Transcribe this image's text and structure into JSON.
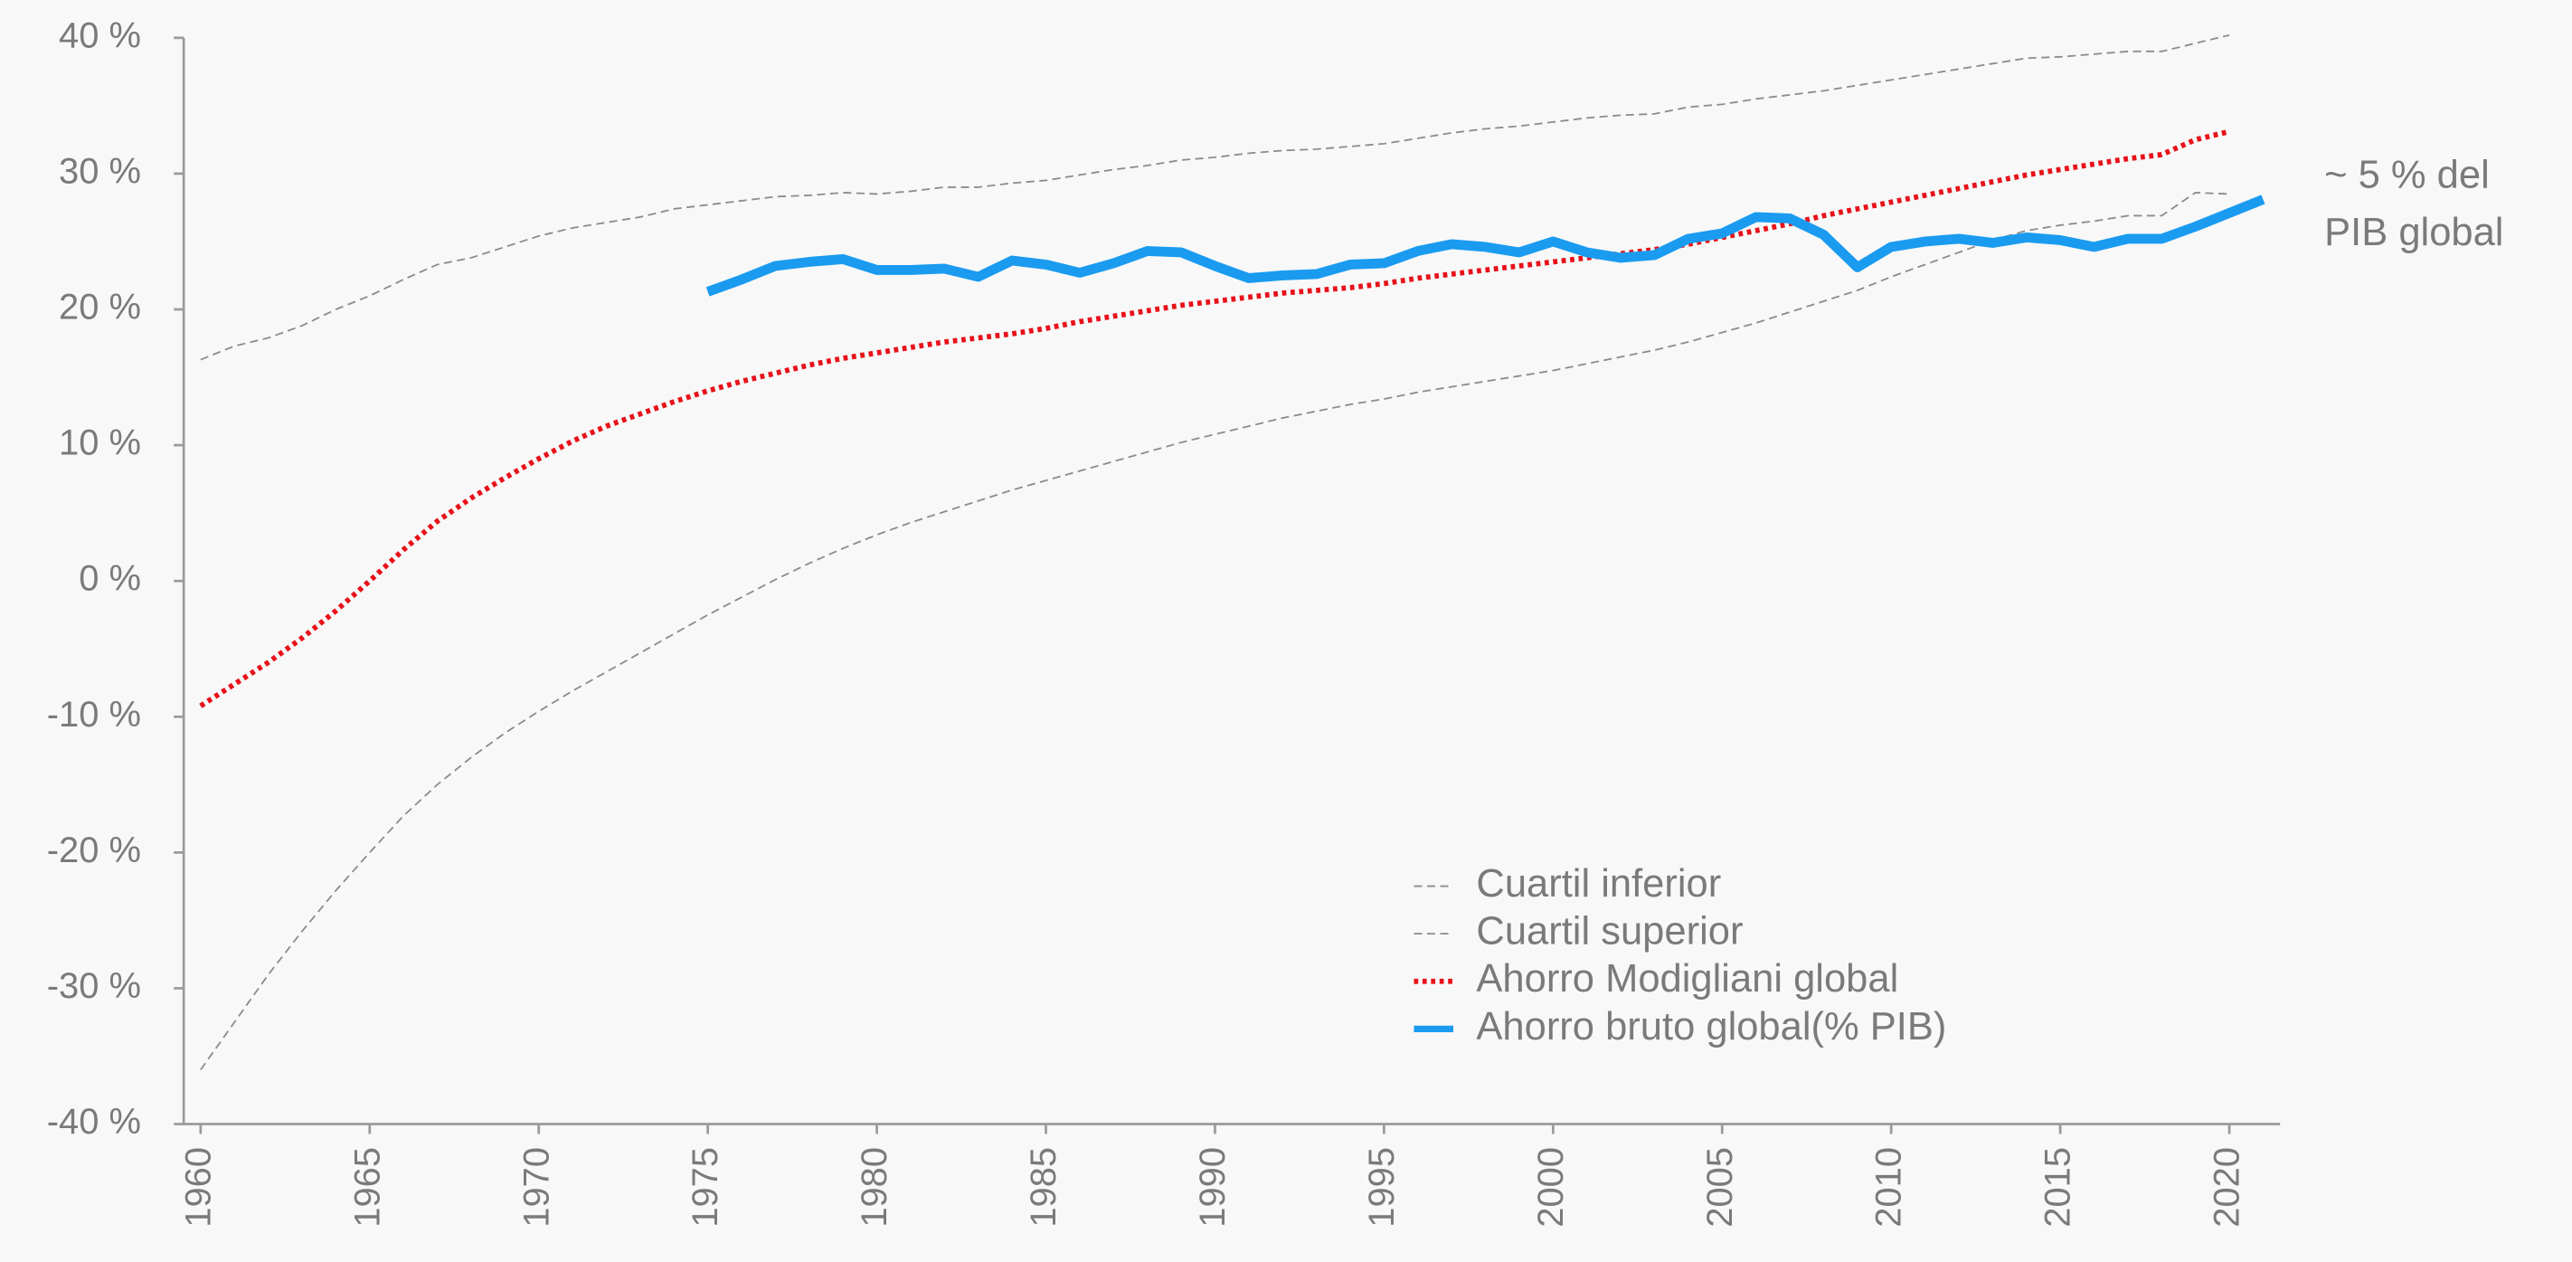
{
  "chart_data": {
    "type": "line",
    "annotation": [
      "~ 5 % del",
      "PIB global"
    ],
    "x": [
      1960,
      1961,
      1962,
      1963,
      1964,
      1965,
      1966,
      1967,
      1968,
      1969,
      1970,
      1971,
      1972,
      1973,
      1974,
      1975,
      1976,
      1977,
      1978,
      1979,
      1980,
      1981,
      1982,
      1983,
      1984,
      1985,
      1986,
      1987,
      1988,
      1989,
      1990,
      1991,
      1992,
      1993,
      1994,
      1995,
      1996,
      1997,
      1998,
      1999,
      2000,
      2001,
      2002,
      2003,
      2004,
      2005,
      2006,
      2007,
      2008,
      2009,
      2010,
      2011,
      2012,
      2013,
      2014,
      2015,
      2016,
      2017,
      2018,
      2019,
      2020,
      2021
    ],
    "xlim": [
      1959.5,
      2021.5
    ],
    "xticks": [
      1960,
      1965,
      1970,
      1975,
      1980,
      1985,
      1990,
      1995,
      2000,
      2005,
      2010,
      2015,
      2020
    ],
    "ylim": [
      -40,
      40
    ],
    "yticks": [
      {
        "value": -40,
        "label": "-40 %"
      },
      {
        "value": -30,
        "label": "-30 %"
      },
      {
        "value": -20,
        "label": "-20 %"
      },
      {
        "value": -10,
        "label": "-10 %"
      },
      {
        "value": 0,
        "label": "0 %"
      },
      {
        "value": 10,
        "label": "10 %"
      },
      {
        "value": 20,
        "label": "20 %"
      },
      {
        "value": 30,
        "label": "30 %"
      },
      {
        "value": 40,
        "label": "40 %"
      }
    ],
    "grid": false,
    "legend": "bottom-center",
    "series": [
      {
        "name": "Cuartil inferior",
        "color": "#8c8c8c",
        "style": "dashed",
        "values": [
          -36,
          -32.5,
          -29,
          -25.8,
          -22.8,
          -20,
          -17.3,
          -15,
          -13,
          -11.2,
          -9.6,
          -8.1,
          -6.7,
          -5.3,
          -3.9,
          -2.5,
          -1.2,
          0.1,
          1.3,
          2.4,
          3.4,
          4.3,
          5.1,
          5.9,
          6.7,
          7.4,
          8.1,
          8.8,
          9.5,
          10.2,
          10.8,
          11.4,
          12.0,
          12.5,
          13.0,
          13.4,
          13.9,
          14.3,
          14.7,
          15.1,
          15.5,
          16.0,
          16.5,
          17.0,
          17.6,
          18.3,
          19.0,
          19.8,
          20.6,
          21.4,
          22.4,
          23.3,
          24.2,
          25.1,
          25.8,
          26.2,
          26.5,
          26.9,
          26.9,
          28.6,
          28.5,
          null
        ]
      },
      {
        "name": "Cuartil superior",
        "color": "#8c8c8c",
        "style": "dashed",
        "values": [
          16.3,
          17.3,
          17.9,
          18.8,
          20.0,
          21.0,
          22.2,
          23.3,
          23.8,
          24.6,
          25.4,
          26.0,
          26.4,
          26.8,
          27.4,
          27.7,
          28.0,
          28.3,
          28.4,
          28.6,
          28.5,
          28.7,
          29.0,
          29.0,
          29.3,
          29.5,
          29.9,
          30.3,
          30.6,
          31.0,
          31.2,
          31.5,
          31.7,
          31.8,
          32.0,
          32.2,
          32.6,
          33.0,
          33.3,
          33.5,
          33.8,
          34.1,
          34.3,
          34.4,
          34.9,
          35.1,
          35.5,
          35.8,
          36.1,
          36.5,
          36.9,
          37.3,
          37.7,
          38.1,
          38.5,
          38.6,
          38.8,
          39.0,
          39.0,
          39.6,
          40.2,
          null
        ]
      },
      {
        "name": "Ahorro Modigliani global",
        "color": "#e8111a",
        "style": "dotted",
        "values": [
          -9.2,
          -7.6,
          -6,
          -4.2,
          -2.2,
          0,
          2.3,
          4.4,
          6.1,
          7.6,
          9.0,
          10.3,
          11.4,
          12.3,
          13.2,
          14.0,
          14.7,
          15.3,
          15.9,
          16.4,
          16.8,
          17.2,
          17.6,
          17.9,
          18.2,
          18.6,
          19.1,
          19.5,
          19.9,
          20.3,
          20.6,
          20.9,
          21.2,
          21.4,
          21.6,
          21.9,
          22.3,
          22.6,
          22.9,
          23.2,
          23.5,
          23.8,
          24.1,
          24.4,
          24.8,
          25.3,
          25.8,
          26.3,
          26.9,
          27.4,
          27.9,
          28.4,
          28.9,
          29.4,
          29.9,
          30.3,
          30.7,
          31.1,
          31.4,
          32.5,
          33.1,
          null
        ]
      },
      {
        "name": "Ahorro bruto global(% PIB)",
        "color": "#1a9bf0",
        "style": "solid",
        "values": [
          null,
          null,
          null,
          null,
          null,
          null,
          null,
          null,
          null,
          null,
          null,
          null,
          null,
          null,
          null,
          21.3,
          22.2,
          23.2,
          23.5,
          23.7,
          22.9,
          22.9,
          23.0,
          22.4,
          23.6,
          23.3,
          22.7,
          23.4,
          24.3,
          24.2,
          23.2,
          22.3,
          22.5,
          22.6,
          23.3,
          23.4,
          24.3,
          24.8,
          24.6,
          24.2,
          25.0,
          24.2,
          23.8,
          24.0,
          25.2,
          25.6,
          26.8,
          26.7,
          25.5,
          23.1,
          24.6,
          25.0,
          25.2,
          24.9,
          25.3,
          25.1,
          24.6,
          25.2,
          25.2,
          26.1,
          27.1,
          28.1
        ]
      }
    ]
  }
}
